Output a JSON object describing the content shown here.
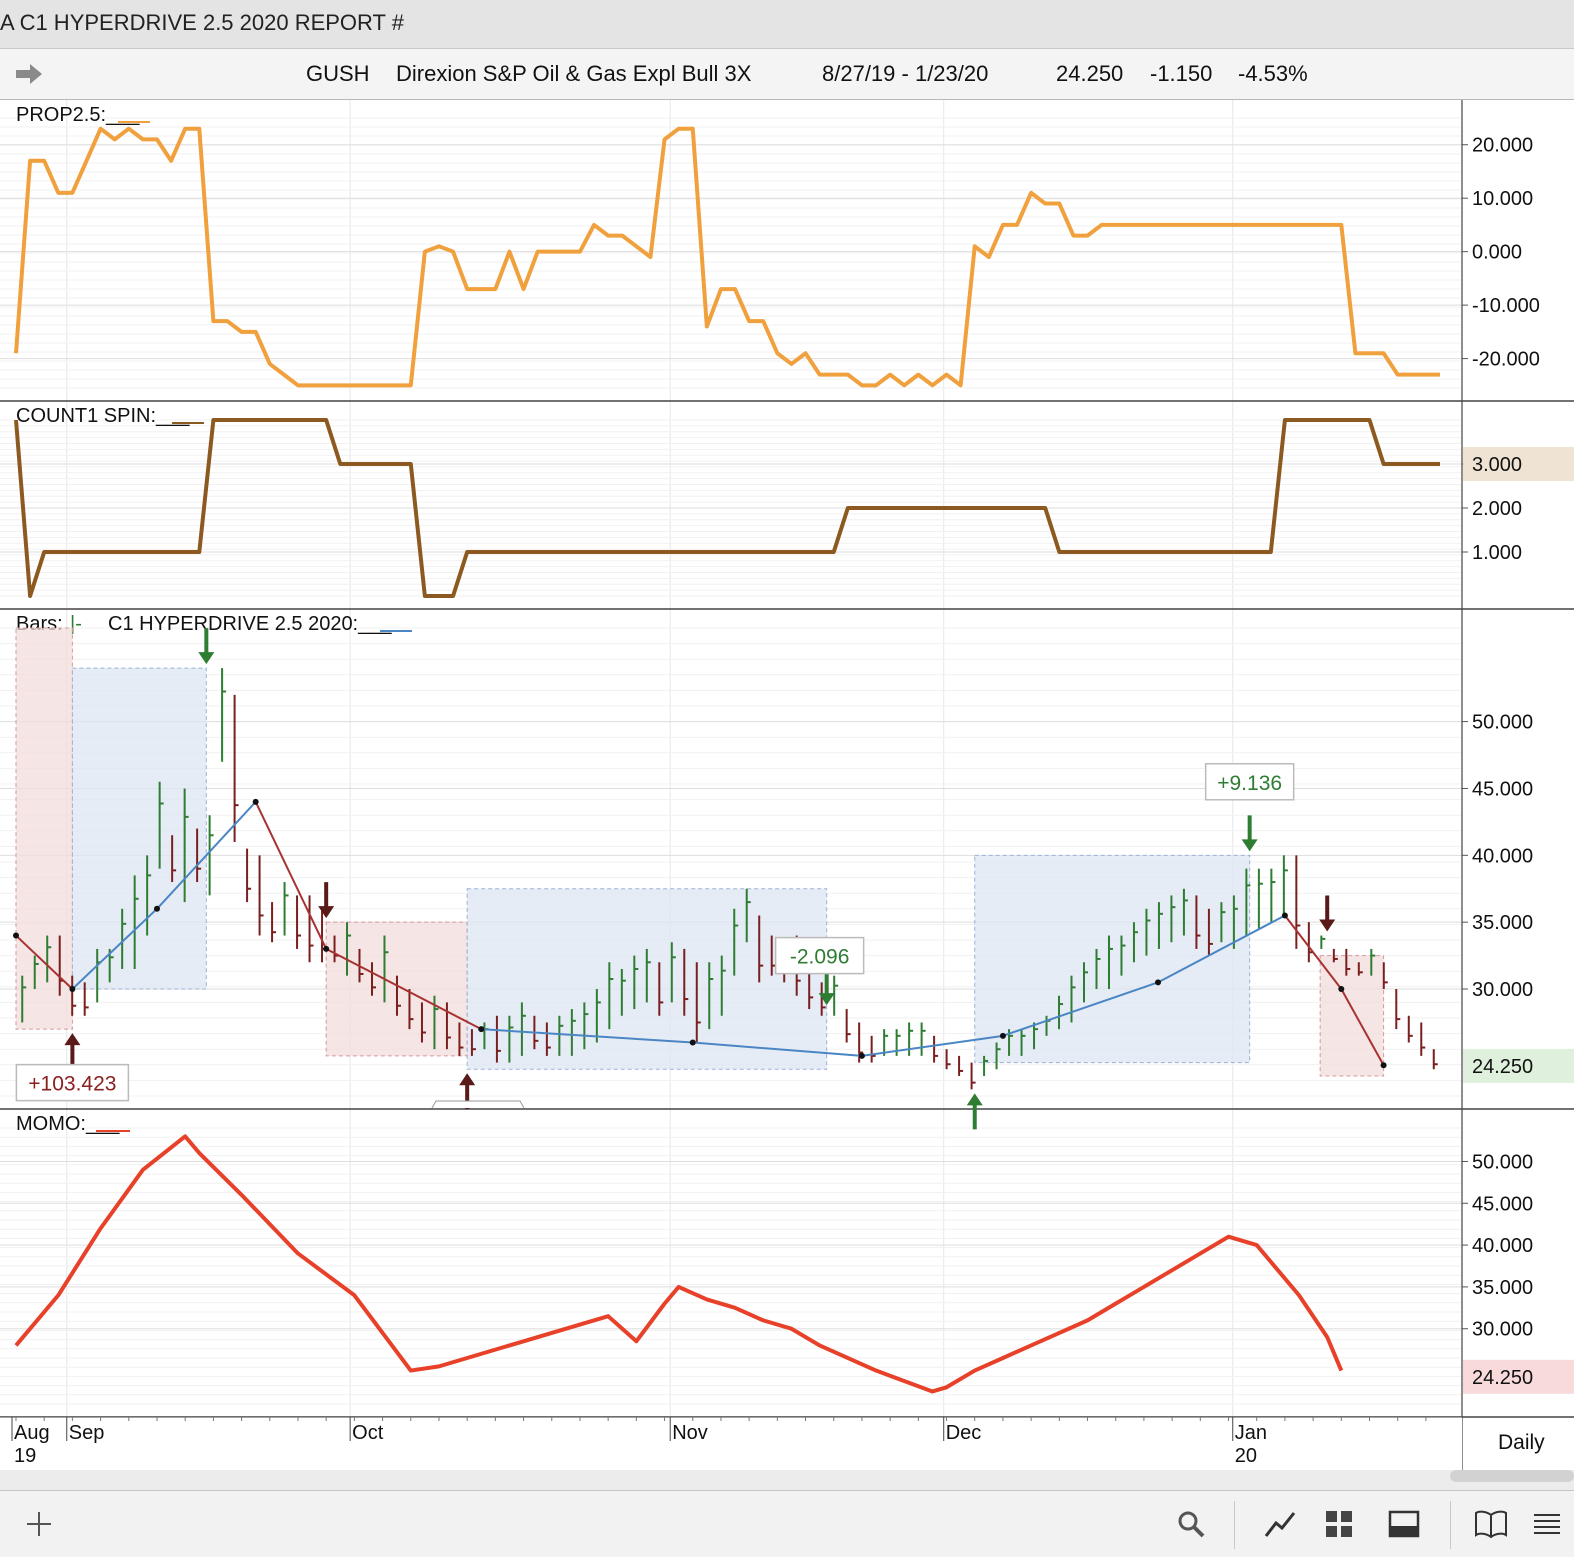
{
  "window": {
    "title": "A C1 HYPERDRIVE 2.5 2020 REPORT #"
  },
  "header": {
    "symbol": "GUSH",
    "name": "Direxion S&P Oil & Gas Expl Bull 3X",
    "date_range": "8/27/19 - 1/23/20",
    "last": "24.250",
    "change": "-1.150",
    "change_pct": "-4.53%"
  },
  "footer": {
    "period": "Daily",
    "icons": [
      "plus-icon",
      "search-icon",
      "chart-line-icon",
      "grid-icon",
      "panel-icon",
      "book-icon",
      "menu-icon"
    ]
  },
  "colors": {
    "prop": "#f0a03c",
    "count": "#8c5a20",
    "momo": "#e8412a",
    "up_bar": "#2e7d32",
    "down_bar": "#7a1f1f",
    "blue_line": "#4a86c4",
    "red_line": "#a83232",
    "blue_box": "#dde6f3",
    "red_box": "#f3dcdc"
  },
  "chart_data": [
    {
      "type": "line",
      "title": "PROP2.5:___",
      "y_ticks": [
        "20.000",
        "10.000",
        "0.000",
        "-10.000",
        "-20.000"
      ],
      "ylim": [
        -25.5,
        25
      ],
      "series": [
        {
          "x": [
            0,
            1,
            2,
            3,
            4,
            5,
            6,
            7,
            8,
            9,
            10,
            11,
            12,
            13,
            14,
            15,
            16,
            17,
            18,
            19,
            20,
            21,
            22,
            23,
            24,
            25,
            26,
            27,
            28,
            29,
            30,
            31,
            32,
            33,
            34,
            35,
            36,
            37,
            38,
            39,
            40,
            41,
            42,
            43,
            44,
            45,
            46,
            47,
            48,
            49,
            50,
            51,
            52,
            53,
            54,
            55,
            56,
            57,
            58,
            59,
            60,
            61,
            62,
            63,
            64,
            65,
            66,
            67,
            68,
            69,
            70,
            71,
            72,
            73,
            74,
            75,
            76,
            77,
            78,
            79,
            80,
            81,
            82,
            83,
            84,
            85,
            86,
            87,
            88,
            89,
            90,
            91,
            92,
            93,
            94,
            95,
            96,
            97,
            98,
            99,
            100,
            101
          ],
          "values": [
            -19,
            17,
            17,
            11,
            11,
            17,
            23,
            21,
            23,
            21,
            21,
            17,
            23,
            23,
            -13,
            -13,
            -15,
            -15,
            -21,
            -23,
            -25,
            -25,
            -25,
            -25,
            -25,
            -25,
            -25,
            -25,
            -25,
            0,
            1,
            0,
            -7,
            -7,
            -7,
            0,
            -7,
            0,
            0,
            0,
            0,
            5,
            3,
            3,
            1,
            -1,
            21,
            23,
            23,
            -14,
            -7,
            -7,
            -13,
            -13,
            -19,
            -21,
            -19,
            -23,
            -23,
            -23,
            -25,
            -25,
            -23,
            -25,
            -23,
            -25,
            -23,
            -25,
            1,
            -1,
            5,
            5,
            11,
            9,
            9,
            3,
            3,
            5,
            5,
            5,
            5,
            5,
            5,
            5,
            5,
            5,
            5,
            5,
            5,
            5,
            5,
            5,
            5,
            5,
            5,
            -19,
            -19,
            -19,
            -23,
            -23,
            -23,
            -23
          ]
        }
      ]
    },
    {
      "type": "line",
      "title": "COUNT1 SPIN:___",
      "y_ticks": [
        "3.000",
        "2.000",
        "1.000"
      ],
      "ylim": [
        0,
        4
      ],
      "last_value": "3.000",
      "series": [
        {
          "x": [
            0,
            1,
            2,
            3,
            4,
            5,
            6,
            7,
            8,
            9,
            10,
            11,
            12,
            13,
            14,
            15,
            16,
            17,
            18,
            19,
            20,
            21,
            22,
            23,
            24,
            25,
            26,
            27,
            28,
            29,
            30,
            31,
            32,
            33,
            34,
            35,
            36,
            37,
            38,
            39,
            40,
            41,
            42,
            43,
            44,
            45,
            46,
            47,
            48,
            49,
            50,
            51,
            52,
            53,
            54,
            55,
            56,
            57,
            58,
            59,
            60,
            61,
            62,
            63,
            64,
            65,
            66,
            67,
            68,
            69,
            70,
            71,
            72,
            73,
            74,
            75,
            76,
            77,
            78,
            79,
            80,
            81,
            82,
            83,
            84,
            85,
            86,
            87,
            88,
            89,
            90,
            91,
            92,
            93,
            94,
            95,
            96,
            97,
            98,
            99,
            100,
            101
          ],
          "values": [
            4,
            0,
            1,
            1,
            1,
            1,
            1,
            1,
            1,
            1,
            1,
            1,
            1,
            1,
            4,
            4,
            4,
            4,
            4,
            4,
            4,
            4,
            4,
            3,
            3,
            3,
            3,
            3,
            3,
            0,
            0,
            0,
            1,
            1,
            1,
            1,
            1,
            1,
            1,
            1,
            1,
            1,
            1,
            1,
            1,
            1,
            1,
            1,
            1,
            1,
            1,
            1,
            1,
            1,
            1,
            1,
            1,
            1,
            1,
            2,
            2,
            2,
            2,
            2,
            2,
            2,
            2,
            2,
            2,
            2,
            2,
            2,
            2,
            2,
            1,
            1,
            1,
            1,
            1,
            1,
            1,
            1,
            1,
            1,
            1,
            1,
            1,
            1,
            1,
            1,
            4,
            4,
            4,
            4,
            4,
            4,
            4,
            3,
            3,
            3,
            3,
            3
          ]
        }
      ]
    },
    {
      "type": "bar",
      "title": "Bars:",
      "title_sym": "|-",
      "title2": "C1 HYPERDRIVE 2.5 2020:___",
      "y_ticks": [
        "50.000",
        "45.000",
        "40.000",
        "35.000",
        "30.000"
      ],
      "ylim": [
        22,
        57
      ],
      "last_value": "24.250",
      "bars": [
        [
          27.5,
          31
        ],
        [
          30,
          32.5
        ],
        [
          30.5,
          34
        ],
        [
          29.5,
          34
        ],
        [
          28,
          31
        ],
        [
          28,
          30.5
        ],
        [
          29,
          33
        ],
        [
          30.5,
          33
        ],
        [
          31.5,
          36
        ],
        [
          31.5,
          38.5
        ],
        [
          34,
          40
        ],
        [
          39,
          45.5
        ],
        [
          38,
          41.5
        ],
        [
          36.5,
          45
        ],
        [
          38,
          42
        ],
        [
          37,
          43
        ],
        [
          47,
          54
        ],
        [
          41,
          52
        ],
        [
          36.5,
          40.5
        ],
        [
          34,
          40
        ],
        [
          33.5,
          36.5
        ],
        [
          34,
          38
        ],
        [
          33,
          37
        ],
        [
          32,
          37
        ],
        [
          32,
          36
        ],
        [
          32,
          34
        ],
        [
          31,
          35
        ],
        [
          30.5,
          33
        ],
        [
          29.5,
          32
        ],
        [
          29,
          34
        ],
        [
          28,
          31
        ],
        [
          27,
          30
        ],
        [
          26,
          29
        ],
        [
          25.5,
          29.5
        ],
        [
          25.5,
          29
        ],
        [
          25,
          27.5
        ],
        [
          25,
          27
        ],
        [
          25.5,
          27.5
        ],
        [
          24.5,
          28
        ],
        [
          24.5,
          28
        ],
        [
          25,
          29
        ],
        [
          25.5,
          28
        ],
        [
          25,
          27.5
        ],
        [
          25,
          28
        ],
        [
          25,
          28.5
        ],
        [
          25.5,
          29
        ],
        [
          26,
          30
        ],
        [
          27,
          32
        ],
        [
          28,
          31.5
        ],
        [
          28.5,
          32.5
        ],
        [
          29,
          33
        ],
        [
          28,
          32
        ],
        [
          29,
          33.5
        ],
        [
          28,
          33
        ],
        [
          26,
          32
        ],
        [
          27,
          32
        ],
        [
          28,
          32.5
        ],
        [
          31,
          36
        ],
        [
          33.5,
          37.5
        ],
        [
          30.5,
          35.5
        ],
        [
          31,
          34
        ],
        [
          30.5,
          33.5
        ],
        [
          29.5,
          34
        ],
        [
          28.5,
          32
        ],
        [
          28,
          30.5
        ],
        [
          28,
          31
        ],
        [
          26,
          28.5
        ],
        [
          24.5,
          27.5
        ],
        [
          24.5,
          26.5
        ],
        [
          25,
          27
        ],
        [
          25,
          27
        ],
        [
          25,
          27.5
        ],
        [
          25,
          27.5
        ],
        [
          24.5,
          26.5
        ],
        [
          24,
          25.5
        ],
        [
          23.5,
          25
        ],
        [
          22.5,
          24.5
        ],
        [
          23.5,
          25
        ],
        [
          24,
          26
        ],
        [
          25,
          27
        ],
        [
          25,
          27
        ],
        [
          25.5,
          27.5
        ],
        [
          26.5,
          28
        ],
        [
          27,
          29.5
        ],
        [
          27.5,
          31
        ],
        [
          29,
          32
        ],
        [
          30,
          33
        ],
        [
          30,
          34
        ],
        [
          31,
          34
        ],
        [
          32,
          35
        ],
        [
          32.5,
          36
        ],
        [
          33,
          36.5
        ],
        [
          33.5,
          37
        ],
        [
          34,
          37.5
        ],
        [
          33,
          37
        ],
        [
          32.5,
          36
        ],
        [
          33.5,
          36.5
        ],
        [
          33,
          37
        ],
        [
          34,
          39
        ],
        [
          34.5,
          39
        ],
        [
          35,
          39
        ],
        [
          35.5,
          40
        ],
        [
          33,
          40
        ],
        [
          32,
          35
        ],
        [
          33,
          34
        ],
        [
          32,
          33
        ],
        [
          31,
          33
        ],
        [
          31,
          32
        ],
        [
          31,
          33
        ],
        [
          30,
          32
        ],
        [
          27,
          30
        ],
        [
          26,
          28
        ],
        [
          25,
          27.5
        ],
        [
          24,
          25.5
        ]
      ],
      "hyperdrive_line": [
        {
          "x": 0,
          "y": 34
        },
        {
          "x": 4,
          "y": 30
        },
        {
          "x": 10,
          "y": 36
        },
        {
          "x": 17,
          "y": 44
        },
        {
          "x": 22,
          "y": 33
        },
        {
          "x": 33,
          "y": 27
        },
        {
          "x": 48,
          "y": 26
        },
        {
          "x": 60,
          "y": 25
        },
        {
          "x": 70,
          "y": 26.5
        },
        {
          "x": 81,
          "y": 30.5
        },
        {
          "x": 90,
          "y": 35.5
        },
        {
          "x": 94,
          "y": 30
        },
        {
          "x": 97,
          "y": 24.3
        }
      ],
      "boxes": [
        {
          "kind": "red",
          "x0": 0,
          "x1": 4,
          "y0": 27,
          "y1": 57
        },
        {
          "kind": "blue",
          "x0": 4,
          "x1": 13.5,
          "y0": 30,
          "y1": 54
        },
        {
          "kind": "red",
          "x0": 22,
          "x1": 32,
          "y0": 25,
          "y1": 35
        },
        {
          "kind": "blue",
          "x0": 32,
          "x1": 57.5,
          "y0": 24,
          "y1": 37.5
        },
        {
          "kind": "blue",
          "x0": 68,
          "x1": 87.5,
          "y0": 24.5,
          "y1": 40
        },
        {
          "kind": "red",
          "x0": 92.5,
          "x1": 97,
          "y0": 23.5,
          "y1": 32.5
        }
      ],
      "annotations": [
        {
          "text": "+103.423",
          "color": "#8b2020",
          "x": 4,
          "y": 23
        },
        {
          "text": "-2.096",
          "color": "#2e7d32",
          "x": 57,
          "y": 32.5
        },
        {
          "text": "+9.136",
          "color": "#2e7d32",
          "x": 87.5,
          "y": 45.5
        }
      ],
      "signal_arrows": [
        {
          "dir": "up",
          "color": "#5a1a1a",
          "x": 4,
          "y": 27
        },
        {
          "dir": "down",
          "color": "#2e7d32",
          "x": 13.5,
          "y": 54
        },
        {
          "dir": "down",
          "color": "#5a1a1a",
          "x": 22,
          "y": 35
        },
        {
          "dir": "up",
          "color": "#5a1a1a",
          "x": 32,
          "y": 24
        },
        {
          "dir": "down",
          "color": "#2e7d32",
          "x": 57.5,
          "y": 28.5
        },
        {
          "dir": "up",
          "color": "#2e7d32",
          "x": 68,
          "y": 22.5
        },
        {
          "dir": "down",
          "color": "#2e7d32",
          "x": 87.5,
          "y": 40
        },
        {
          "dir": "down",
          "color": "#5a1a1a",
          "x": 93,
          "y": 34
        }
      ]
    },
    {
      "type": "line",
      "title": "MOMO:___",
      "y_ticks": [
        "50.000",
        "45.000",
        "40.000",
        "35.000",
        "30.000"
      ],
      "ylim": [
        21,
        54
      ],
      "last_value": "24.250",
      "series": [
        {
          "x": [
            0,
            3,
            6,
            9,
            12,
            13,
            16,
            20,
            24,
            28,
            30,
            32,
            34,
            36,
            38,
            40,
            42,
            44,
            46,
            47,
            49,
            51,
            53,
            55,
            57,
            61,
            65,
            66,
            68,
            70,
            72,
            74,
            76,
            78,
            80,
            82,
            84,
            86,
            88,
            91,
            93,
            94
          ],
          "values": [
            28,
            34,
            42,
            49,
            53,
            51,
            46,
            39,
            34,
            25,
            25.5,
            26.5,
            27.5,
            28.5,
            29.5,
            30.5,
            31.5,
            28.5,
            33,
            35,
            33.5,
            32.5,
            31,
            30,
            28,
            25,
            22.5,
            23,
            25,
            26.5,
            28,
            29.5,
            31,
            33,
            35,
            37,
            39,
            41,
            40,
            34,
            29,
            25
          ]
        }
      ]
    }
  ],
  "x_axis": {
    "month_labels": [
      {
        "label": "Aug",
        "sub": "19"
      },
      {
        "label": "Sep",
        "sub": ""
      },
      {
        "label": "Oct",
        "sub": ""
      },
      {
        "label": "Nov",
        "sub": ""
      },
      {
        "label": "Dec",
        "sub": ""
      },
      {
        "label": "Jan",
        "sub": "20"
      }
    ]
  }
}
